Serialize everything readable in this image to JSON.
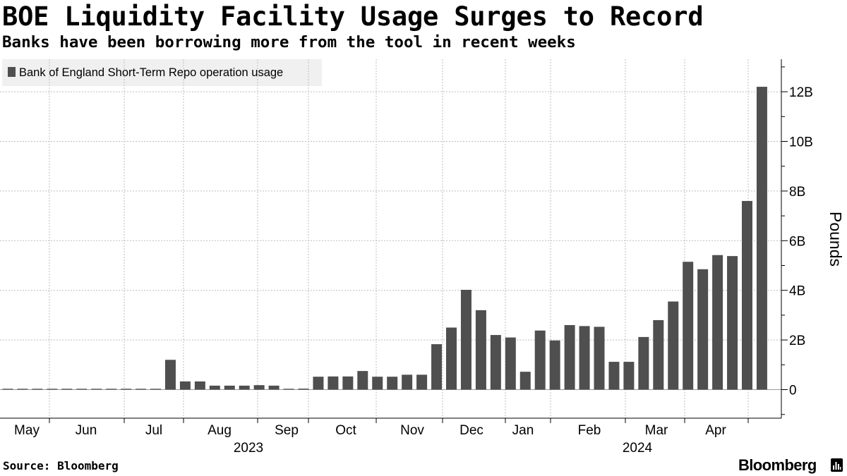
{
  "title": "BOE Liquidity Facility Usage Surges to Record",
  "subtitle": "Banks have been borrowing more from the tool in recent weeks",
  "source": "Source: Bloomberg",
  "brand": "Bloomberg",
  "colors": {
    "bar": "#4f4f4f",
    "grid": "#bdbdbd",
    "legend_bg": "#f0f0f0",
    "axis": "#000000",
    "text": "#000000"
  },
  "chart_data": {
    "type": "bar",
    "series": [
      {
        "name": "Bank of England Short-Term Repo operation usage",
        "values": [
          0.01,
          0.01,
          0.01,
          0.01,
          0.01,
          0.01,
          0.01,
          0.01,
          0.01,
          0.01,
          0.03,
          1.2,
          0.33,
          0.33,
          0.16,
          0.16,
          0.16,
          0.18,
          0.16,
          0.03,
          0.04,
          0.52,
          0.53,
          0.53,
          0.75,
          0.52,
          0.52,
          0.6,
          0.6,
          1.83,
          2.5,
          4.02,
          3.2,
          2.2,
          2.1,
          0.72,
          2.38,
          1.98,
          2.6,
          2.56,
          2.53,
          1.12,
          1.12,
          2.12,
          2.8,
          3.55,
          5.15,
          4.85,
          5.42,
          5.38,
          7.6,
          12.2
        ]
      }
    ],
    "x_axis": {
      "months": [
        "May",
        "Jun",
        "Jul",
        "Aug",
        "Sep",
        "Oct",
        "Nov",
        "Dec",
        "Jan",
        "Feb",
        "Mar",
        "Apr"
      ],
      "years": [
        "2023",
        "2024"
      ]
    },
    "y_axis": {
      "label": "Pounds",
      "ticks": [
        "0",
        "2B",
        "4B",
        "6B",
        "8B",
        "10B",
        "12B"
      ],
      "tick_values": [
        0,
        2,
        4,
        6,
        8,
        10,
        12
      ],
      "range": [
        -1.2,
        13.2
      ]
    },
    "legend_position": "top-left",
    "grid": true
  }
}
